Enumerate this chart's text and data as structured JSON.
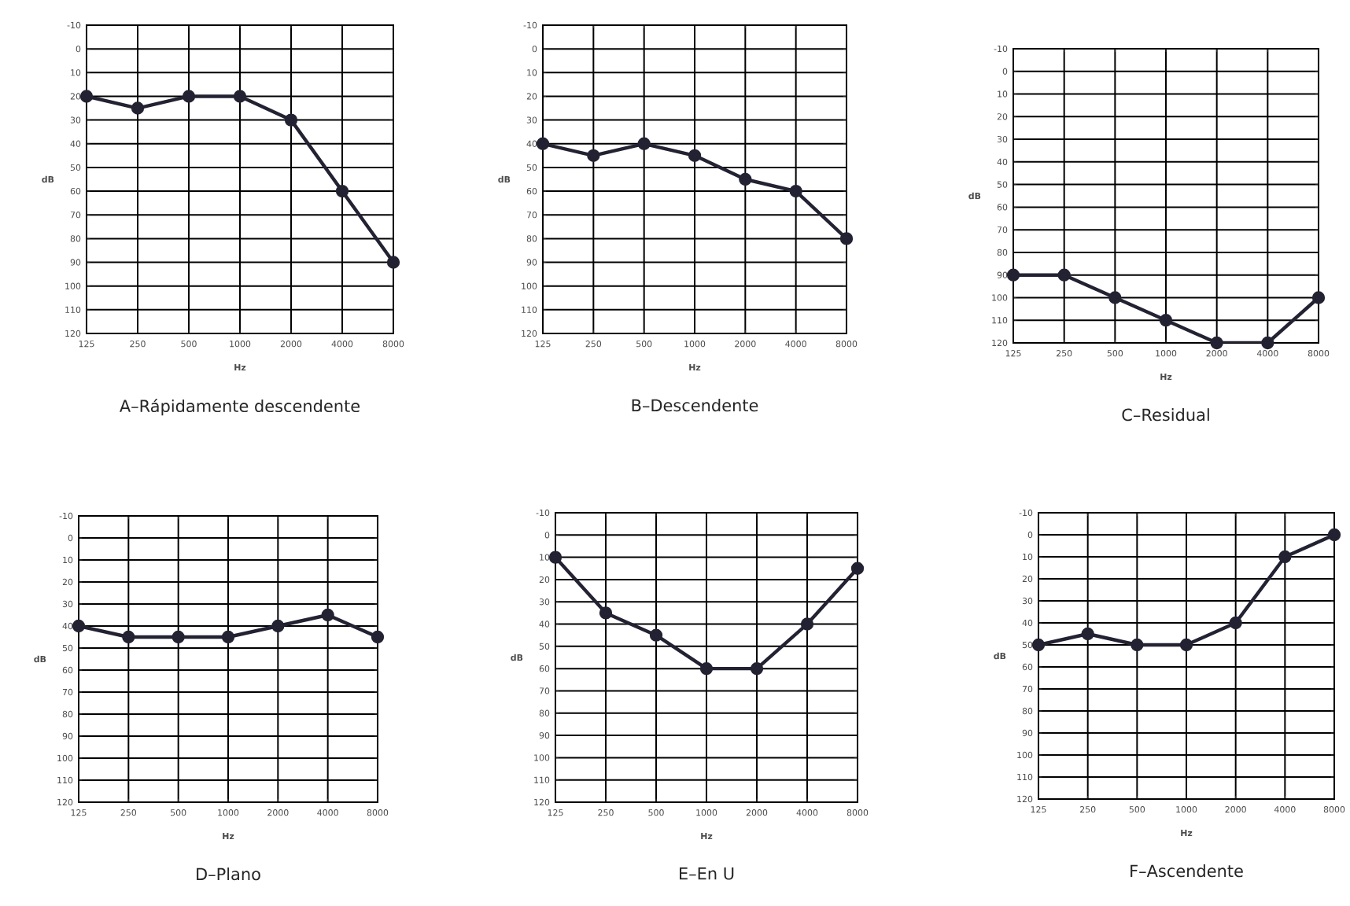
{
  "chart_data": [
    {
      "type": "line",
      "title": "A–Rápidamente descendente",
      "xlabel": "Hz",
      "ylabel": "dB",
      "categories": [
        "125",
        "250",
        "500",
        "1000",
        "2000",
        "4000",
        "8000"
      ],
      "series": [
        {
          "color": "#222233",
          "values": [
            20,
            25,
            20,
            20,
            30,
            60,
            90
          ]
        }
      ],
      "ylim": [
        120,
        -10
      ],
      "yticks": [
        -10,
        0,
        10,
        20,
        30,
        40,
        50,
        60,
        70,
        80,
        90,
        100,
        110,
        120
      ],
      "grid": true,
      "marker": "circle",
      "line_style": "solid"
    },
    {
      "type": "line",
      "title": "B–Descendente",
      "xlabel": "Hz",
      "ylabel": "dB",
      "categories": [
        "125",
        "250",
        "500",
        "1000",
        "2000",
        "4000",
        "8000"
      ],
      "series": [
        {
          "color": "#222233",
          "values": [
            40,
            45,
            40,
            45,
            55,
            60,
            80
          ]
        }
      ],
      "ylim": [
        120,
        -10
      ],
      "yticks": [
        -10,
        0,
        10,
        20,
        30,
        40,
        50,
        60,
        70,
        80,
        90,
        100,
        110,
        120
      ],
      "grid": true,
      "marker": "circle",
      "line_style": "solid"
    },
    {
      "type": "line",
      "title": "C–Residual",
      "xlabel": "Hz",
      "ylabel": "dB",
      "categories": [
        "125",
        "250",
        "500",
        "1000",
        "2000",
        "4000",
        "8000"
      ],
      "series": [
        {
          "color": "#222233",
          "values": [
            90,
            90,
            100,
            110,
            120,
            120,
            100
          ]
        }
      ],
      "ylim": [
        120,
        -10
      ],
      "yticks": [
        -10,
        0,
        10,
        20,
        30,
        40,
        50,
        60,
        70,
        80,
        90,
        100,
        110,
        120
      ],
      "grid": true,
      "marker": "circle",
      "line_style": "solid"
    },
    {
      "type": "line",
      "title": "D–Plano",
      "xlabel": "Hz",
      "ylabel": "dB",
      "categories": [
        "125",
        "250",
        "500",
        "1000",
        "2000",
        "4000",
        "8000"
      ],
      "series": [
        {
          "color": "#222233",
          "values": [
            40,
            45,
            45,
            45,
            40,
            35,
            45
          ]
        }
      ],
      "ylim": [
        120,
        -10
      ],
      "yticks": [
        -10,
        0,
        10,
        20,
        30,
        40,
        50,
        60,
        70,
        80,
        90,
        100,
        110,
        120
      ],
      "grid": true,
      "marker": "circle",
      "line_style": "solid"
    },
    {
      "type": "line",
      "title": "E–En U",
      "xlabel": "Hz",
      "ylabel": "dB",
      "categories": [
        "125",
        "250",
        "500",
        "1000",
        "2000",
        "4000",
        "8000"
      ],
      "series": [
        {
          "color": "#222233",
          "values": [
            10,
            35,
            45,
            60,
            60,
            40,
            15
          ]
        }
      ],
      "ylim": [
        120,
        -10
      ],
      "yticks": [
        -10,
        0,
        10,
        20,
        30,
        40,
        50,
        60,
        70,
        80,
        90,
        100,
        110,
        120
      ],
      "grid": true,
      "marker": "circle",
      "line_style": "solid"
    },
    {
      "type": "line",
      "title": "F–Ascendente",
      "xlabel": "Hz",
      "ylabel": "dB",
      "categories": [
        "125",
        "250",
        "500",
        "1000",
        "2000",
        "4000",
        "8000"
      ],
      "series": [
        {
          "color": "#222233",
          "values": [
            50,
            45,
            50,
            50,
            40,
            10,
            0
          ]
        }
      ],
      "ylim": [
        120,
        -10
      ],
      "yticks": [
        -10,
        0,
        10,
        20,
        30,
        40,
        50,
        60,
        70,
        80,
        90,
        100,
        110,
        120
      ],
      "grid": true,
      "marker": "circle",
      "line_style": "solid"
    }
  ]
}
